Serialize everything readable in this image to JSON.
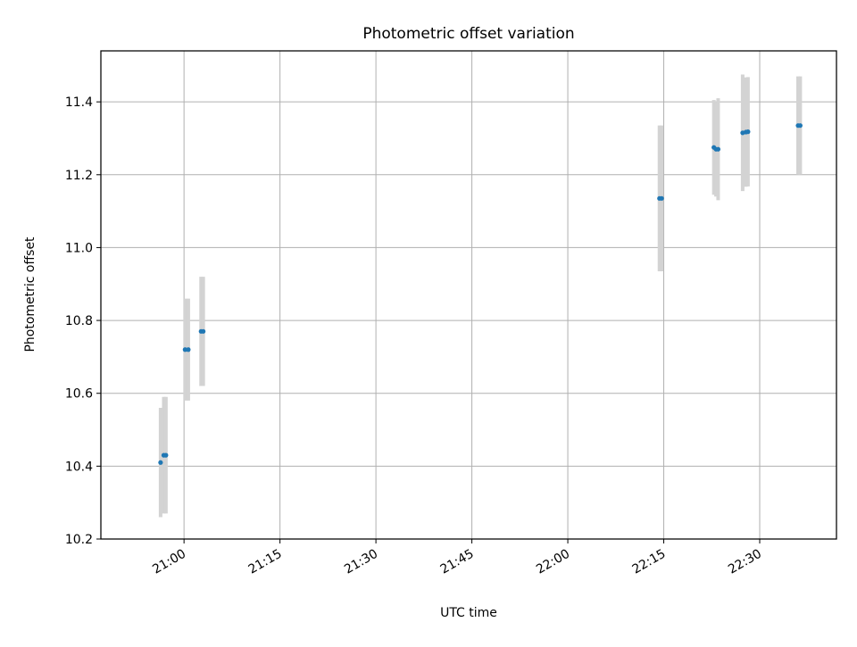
{
  "chart_data": {
    "type": "scatter",
    "title": "Photometric offset variation",
    "xlabel": "UTC time",
    "ylabel": "Photometric offset",
    "x_is_time": true,
    "xlim": [
      "20:47",
      "22:42"
    ],
    "ylim": [
      10.2,
      11.54
    ],
    "x_ticks": [
      "21:00",
      "21:15",
      "21:30",
      "21:45",
      "22:00",
      "22:15",
      "22:30"
    ],
    "y_ticks": [
      "10.2",
      "10.4",
      "10.6",
      "10.8",
      "11.0",
      "11.2",
      "11.4"
    ],
    "grid": true,
    "point_color": "#1f77b4",
    "errorbar_color": "#d3d3d3",
    "points": [
      {
        "x": "20:56:20",
        "y": 10.41,
        "err": 0.15
      },
      {
        "x": "20:56:50",
        "y": 10.43,
        "err": 0.16
      },
      {
        "x": "20:57:10",
        "y": 10.43,
        "err": 0.16
      },
      {
        "x": "21:00:10",
        "y": 10.72,
        "err": 0.14
      },
      {
        "x": "21:00:40",
        "y": 10.72,
        "err": 0.14
      },
      {
        "x": "21:02:40",
        "y": 10.77,
        "err": 0.15
      },
      {
        "x": "21:03:00",
        "y": 10.77,
        "err": 0.15
      },
      {
        "x": "22:14:20",
        "y": 11.135,
        "err": 0.2
      },
      {
        "x": "22:14:40",
        "y": 11.135,
        "err": 0.2
      },
      {
        "x": "22:22:50",
        "y": 11.275,
        "err": 0.13
      },
      {
        "x": "22:23:10",
        "y": 11.27,
        "err": 0.13
      },
      {
        "x": "22:23:30",
        "y": 11.27,
        "err": 0.14
      },
      {
        "x": "22:27:20",
        "y": 11.315,
        "err": 0.16
      },
      {
        "x": "22:27:50",
        "y": 11.317,
        "err": 0.15
      },
      {
        "x": "22:28:10",
        "y": 11.318,
        "err": 0.15
      },
      {
        "x": "22:36:00",
        "y": 11.335,
        "err": 0.135
      },
      {
        "x": "22:36:20",
        "y": 11.335,
        "err": 0.135
      }
    ]
  }
}
